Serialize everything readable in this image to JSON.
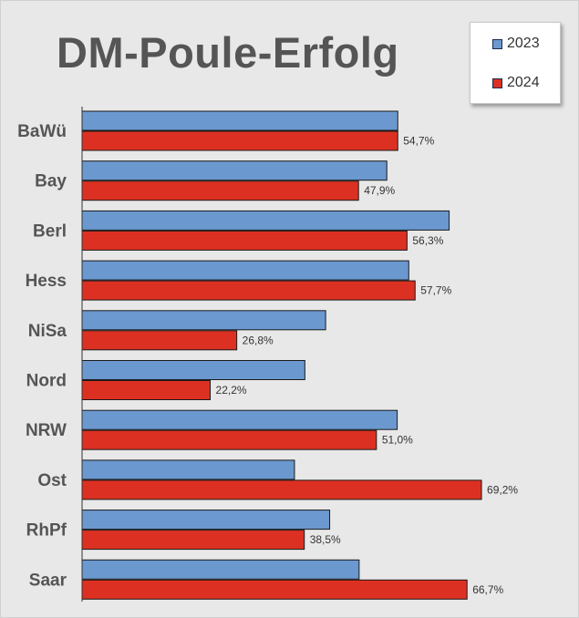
{
  "colors": {
    "s2023": "#6b98cf",
    "s2024": "#dc3122",
    "axis": "#333333",
    "label": "#555555"
  },
  "chart_data": {
    "type": "bar",
    "orientation": "horizontal",
    "title": "DM-Poule-Erfolg",
    "categories": [
      "BaWü",
      "Bay",
      "Berl",
      "Hess",
      "NiSa",
      "Nord",
      "NRW",
      "Ost",
      "RhPf",
      "Saar"
    ],
    "series": [
      {
        "name": "2023",
        "values": [
          54.7,
          52.8,
          63.6,
          56.6,
          42.2,
          38.6,
          54.6,
          36.8,
          42.9,
          48.0
        ]
      },
      {
        "name": "2024",
        "values": [
          54.7,
          47.9,
          56.3,
          57.7,
          26.8,
          22.2,
          51.0,
          69.2,
          38.5,
          66.7
        ],
        "labels": [
          "54,7%",
          "47,9%",
          "56,3%",
          "57,7%",
          "26,8%",
          "22,2%",
          "51,0%",
          "69,2%",
          "38,5%",
          "66,7%"
        ]
      }
    ],
    "xlim": [
      0,
      100
    ],
    "legend": "top-right",
    "grid": false
  }
}
